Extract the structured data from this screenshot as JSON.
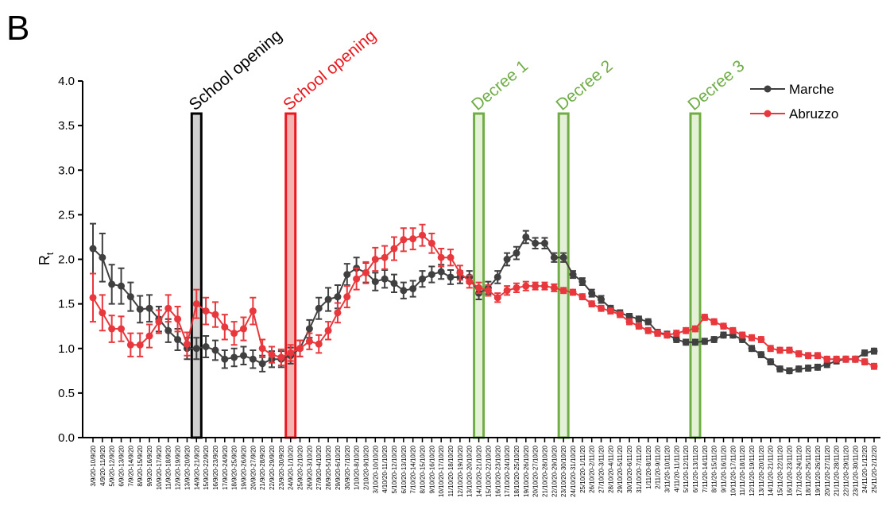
{
  "chart_data": {
    "type": "line",
    "panel": "B",
    "y_label": {
      "main": "R",
      "sub": "t"
    },
    "categories": [
      "3/9/20-10/9/20",
      "4/9/20-11/9/20",
      "5/9/20-12/9/20",
      "6/9/20-13/9/20",
      "7/9/20-14/9/20",
      "8/9/20-15/9/20",
      "9/9/20-16/9/20",
      "10/9/20-17/9/20",
      "11/9/20-18/9/20",
      "12/9/20-19/9/20",
      "13/9/20-20/9/20",
      "14/9/20-21/9/20",
      "15/9/20-22/9/20",
      "16/9/20-23/9/20",
      "17/9/20-24/9/20",
      "18/9/20-25/9/20",
      "19/9/20-26/9/20",
      "20/9/20-27/9/20",
      "21/9/20-28/9/20",
      "22/9/20-29/9/20",
      "23/9/20-30/9/20",
      "24/9/20-1/10/20",
      "25/9/20-2/10/20",
      "26/9/20-3/10/20",
      "27/9/20-4/10/20",
      "28/9/20-5/10/20",
      "29/9/20-6/10/20",
      "30/9/20-7/10/20",
      "1/10/20-8/10/20",
      "2/10/20-9/10/20",
      "3/10/20-10/10/20",
      "4/10/20-11/10/20",
      "5/10/20-12/10/20",
      "6/10/20-13/10/20",
      "7/10/20-14/10/20",
      "8/10/20-15/10/20",
      "9/10/20-16/10/20",
      "10/10/20-17/10/20",
      "11/10/20-18/10/20",
      "12/10/20-19/10/20",
      "13/10/20-20/10/20",
      "14/10/20-21/10/20",
      "15/10/20-22/10/20",
      "16/10/20-23/10/20",
      "17/10/20-24/10/20",
      "18/10/20-25/10/20",
      "19/10/20-26/10/20",
      "20/10/20-27/10/20",
      "21/10/20-28/10/20",
      "22/10/20-29/10/20",
      "23/10/20-30/10/20",
      "24/10/20-31/10/20",
      "25/10/20-1/11/20",
      "26/10/20-2/11/20",
      "27/10/20-3/11/20",
      "28/10/20-4/11/20",
      "29/10/20-5/11/20",
      "30/10/20-6/11/20",
      "31/10/20-7/11/20",
      "1/11/20-8/11/20",
      "2/11/20-9/11/20",
      "3/11/20-10/11/20",
      "4/11/20-11/11/20",
      "5/11/20-12/11/20",
      "6/11/20-13/11/20",
      "7/11/20-14/11/20",
      "8/11/20-15/11/20",
      "9/11/20-16/11/20",
      "10/11/20-17/11/20",
      "11/11/20-18/11/20",
      "12/11/20-19/11/20",
      "13/11/20-20/11/20",
      "14/11/20-21/11/20",
      "15/11/20-22/11/20",
      "16/11/20-23/11/20",
      "17/11/20-24/11/20",
      "18/11/20-25/11/20",
      "19/11/20-26/11/20",
      "20/11/20-27/11/20",
      "21/11/20-28/11/20",
      "22/11/20-29/11/20",
      "23/11/20-30/11/20",
      "24/11/20-1/12/20",
      "25/11/20-2/12/20"
    ],
    "series": [
      {
        "name": "Marche",
        "color": "#404040",
        "values": [
          2.12,
          2.02,
          1.72,
          1.7,
          1.58,
          1.44,
          1.45,
          1.33,
          1.2,
          1.1,
          1.0,
          1.0,
          1.02,
          0.98,
          0.88,
          0.9,
          0.92,
          0.88,
          0.83,
          0.88,
          0.88,
          0.92,
          1.0,
          1.22,
          1.45,
          1.55,
          1.58,
          1.83,
          1.9,
          1.85,
          1.75,
          1.78,
          1.73,
          1.65,
          1.67,
          1.78,
          1.83,
          1.86,
          1.8,
          1.8,
          1.8,
          1.62,
          1.68,
          1.8,
          2.0,
          2.07,
          2.25,
          2.18,
          2.18,
          2.02,
          2.02,
          1.83,
          1.75,
          1.62,
          1.55,
          1.45,
          1.4,
          1.36,
          1.33,
          1.3,
          1.18,
          1.16,
          1.1,
          1.07,
          1.07,
          1.08,
          1.1,
          1.15,
          1.15,
          1.1,
          1.0,
          0.93,
          0.85,
          0.77,
          0.75,
          0.77,
          0.78,
          0.79,
          0.82,
          0.86,
          0.88,
          0.88,
          0.95,
          0.97
        ],
        "errors": [
          0.28,
          0.27,
          0.22,
          0.2,
          0.16,
          0.15,
          0.15,
          0.14,
          0.13,
          0.12,
          0.12,
          0.12,
          0.12,
          0.11,
          0.1,
          0.1,
          0.1,
          0.1,
          0.09,
          0.09,
          0.09,
          0.09,
          0.09,
          0.1,
          0.12,
          0.13,
          0.13,
          0.12,
          0.12,
          0.11,
          0.1,
          0.1,
          0.1,
          0.09,
          0.09,
          0.09,
          0.09,
          0.08,
          0.08,
          0.07,
          0.07,
          0.07,
          0.07,
          0.07,
          0.07,
          0.07,
          0.07,
          0.06,
          0.06,
          0.05,
          0.05,
          0.04,
          0.04,
          0.04,
          0.04,
          0.03,
          0.03,
          0.03,
          0.03,
          0.03,
          0.03,
          0.03,
          0.03,
          0.03,
          0.03,
          0.03,
          0.03,
          0.03,
          0.03,
          0.03,
          0.03,
          0.03,
          0.03,
          0.03,
          0.03,
          0.03,
          0.03,
          0.03,
          0.03,
          0.03,
          0.03,
          0.03,
          0.03,
          0.03
        ]
      },
      {
        "name": "Abruzzo",
        "color": "#e8383d",
        "values": [
          1.57,
          1.4,
          1.22,
          1.22,
          1.04,
          1.04,
          1.14,
          1.3,
          1.45,
          1.33,
          1.05,
          1.5,
          1.42,
          1.38,
          1.24,
          1.17,
          1.22,
          1.42,
          1.0,
          0.93,
          0.9,
          0.95,
          1.0,
          1.08,
          1.05,
          1.2,
          1.4,
          1.58,
          1.78,
          1.85,
          2.0,
          2.02,
          2.12,
          2.22,
          2.23,
          2.27,
          2.18,
          2.02,
          2.02,
          1.85,
          1.75,
          1.68,
          1.65,
          1.57,
          1.65,
          1.68,
          1.7,
          1.7,
          1.7,
          1.68,
          1.65,
          1.63,
          1.58,
          1.5,
          1.45,
          1.42,
          1.38,
          1.3,
          1.25,
          1.2,
          1.17,
          1.15,
          1.17,
          1.2,
          1.22,
          1.35,
          1.3,
          1.25,
          1.2,
          1.15,
          1.12,
          1.1,
          1.0,
          0.98,
          0.98,
          0.94,
          0.92,
          0.92,
          0.88,
          0.88,
          0.88,
          0.88,
          0.85,
          0.8
        ],
        "errors": [
          0.27,
          0.2,
          0.15,
          0.14,
          0.13,
          0.13,
          0.13,
          0.13,
          0.15,
          0.14,
          0.13,
          0.16,
          0.15,
          0.14,
          0.14,
          0.13,
          0.13,
          0.15,
          0.1,
          0.09,
          0.09,
          0.09,
          0.09,
          0.09,
          0.1,
          0.1,
          0.11,
          0.12,
          0.12,
          0.12,
          0.13,
          0.13,
          0.13,
          0.13,
          0.12,
          0.12,
          0.11,
          0.1,
          0.09,
          0.08,
          0.07,
          0.06,
          0.06,
          0.05,
          0.05,
          0.05,
          0.05,
          0.04,
          0.04,
          0.04,
          0.03,
          0.03,
          0.03,
          0.03,
          0.03,
          0.03,
          0.03,
          0.03,
          0.03,
          0.03,
          0.03,
          0.03,
          0.03,
          0.03,
          0.03,
          0.03,
          0.03,
          0.03,
          0.03,
          0.03,
          0.03,
          0.03,
          0.03,
          0.03,
          0.03,
          0.03,
          0.03,
          0.03,
          0.03,
          0.03,
          0.03,
          0.03,
          0.03,
          0.03
        ]
      }
    ],
    "ylim": [
      0,
      4
    ],
    "yticks": [
      {
        "value": 0,
        "label": "0.0"
      },
      0.5,
      {
        "value": 1,
        "label": "1.0"
      },
      1.5,
      {
        "value": 2,
        "label": "2.0"
      },
      2.5,
      {
        "value": 3,
        "label": "3.0"
      },
      3.5,
      {
        "value": 4,
        "label": "4.0"
      }
    ],
    "legend": "top-right",
    "annotations": [
      {
        "label": "School opening",
        "at": "14/9/20-21/9/20",
        "color": "#000000",
        "fill": "#d0d0d0"
      },
      {
        "label": "School opening",
        "at": "24/9/20-1/10/20",
        "color": "#e8191f",
        "fill": "#f7b2b2"
      },
      {
        "label": "Decree 1",
        "at": "14/10/20-21/10/20",
        "color": "#70ad47",
        "fill": "#e4f1d6"
      },
      {
        "label": "Decree 2",
        "at": "23/10/20-30/10/20",
        "color": "#70ad47",
        "fill": "#e4f1d6"
      },
      {
        "label": "Decree 3",
        "at": "6/11/20-13/11/20",
        "color": "#70ad47",
        "fill": "#e4f1d6"
      }
    ]
  }
}
